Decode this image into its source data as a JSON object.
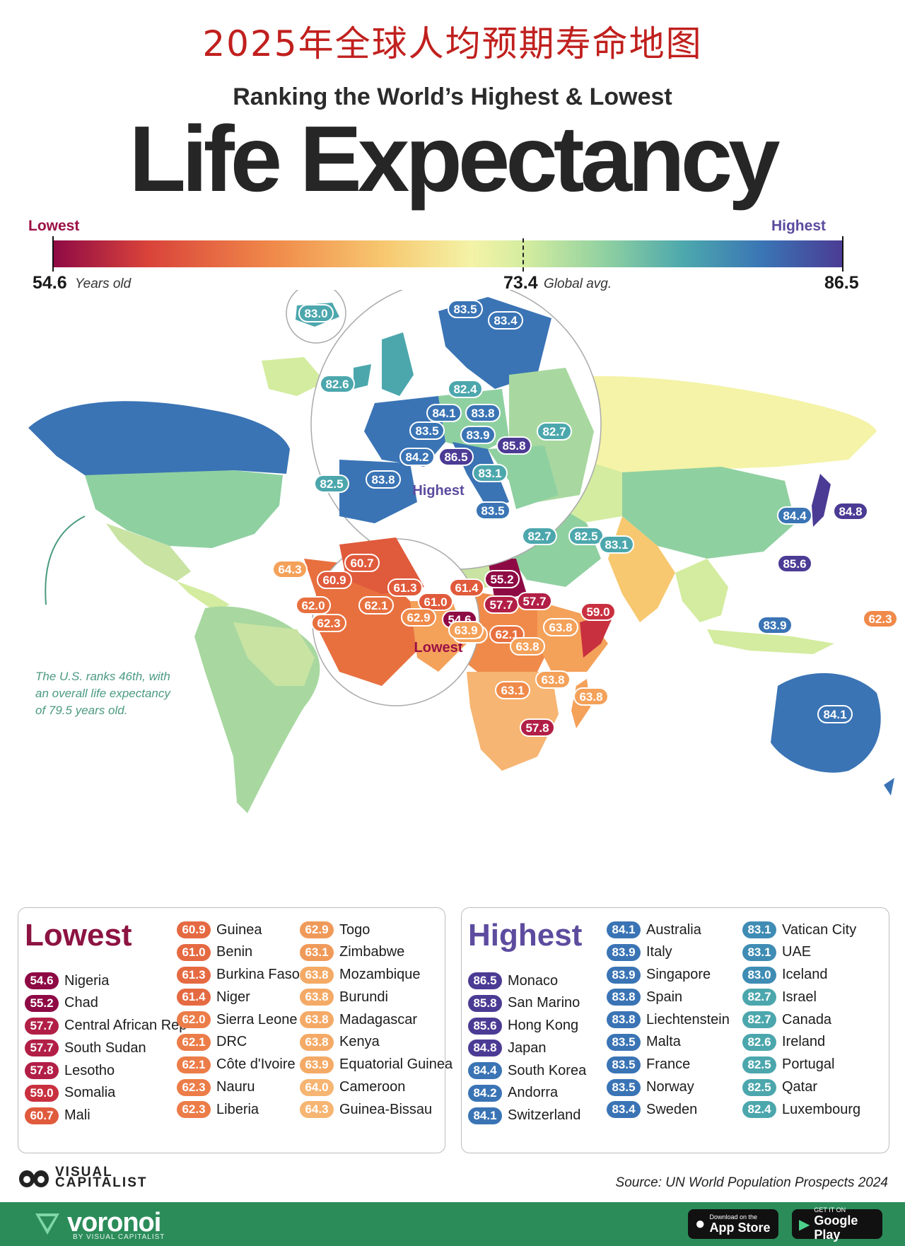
{
  "header": {
    "cn_title": "2025年全球人均预期寿命地图",
    "subtitle": "Ranking the World’s Highest & Lowest",
    "title": "Life Expectancy"
  },
  "scale": {
    "lowest_label": "Lowest",
    "highest_label": "Highest",
    "min_value": "54.6",
    "min_unit": "Years old",
    "avg_value": "73.4",
    "avg_unit": "Global avg.",
    "max_value": "86.5",
    "colors": [
      "#8e0a45",
      "#d9433a",
      "#f08a4a",
      "#f7c870",
      "#f4f3a7",
      "#8fd0a1",
      "#4ca7ad",
      "#3a74b5",
      "#4b3b94"
    ]
  },
  "map": {
    "highest_marker": "Highest",
    "lowest_marker": "Lowest",
    "note": "The U.S. ranks 46th, with an overall life expectancy of 79.5 years old.",
    "labels": [
      {
        "v": "83.0",
        "c": "#4ca7ad"
      },
      {
        "v": "83.5",
        "c": "#3a74b5"
      },
      {
        "v": "83.4",
        "c": "#3a74b5"
      },
      {
        "v": "82.6",
        "c": "#4ca7ad"
      },
      {
        "v": "82.4",
        "c": "#4ca7ad"
      },
      {
        "v": "82.7",
        "c": "#4ca7ad"
      },
      {
        "v": "84.1",
        "c": "#3a74b5"
      },
      {
        "v": "83.8",
        "c": "#3a74b5"
      },
      {
        "v": "83.5",
        "c": "#3a74b5"
      },
      {
        "v": "83.9",
        "c": "#3a74b5"
      },
      {
        "v": "85.8",
        "c": "#4b3b94"
      },
      {
        "v": "84.2",
        "c": "#3a74b5"
      },
      {
        "v": "86.5",
        "c": "#4b3b94"
      },
      {
        "v": "83.1",
        "c": "#4ca7ad"
      },
      {
        "v": "82.5",
        "c": "#4ca7ad"
      },
      {
        "v": "83.8",
        "c": "#3a74b5"
      },
      {
        "v": "83.5",
        "c": "#3a74b5"
      },
      {
        "v": "82.7",
        "c": "#4ca7ad"
      },
      {
        "v": "82.5",
        "c": "#4ca7ad"
      },
      {
        "v": "83.1",
        "c": "#4ca7ad"
      },
      {
        "v": "84.4",
        "c": "#3a74b5"
      },
      {
        "v": "84.8",
        "c": "#4b3b94"
      },
      {
        "v": "85.6",
        "c": "#4b3b94"
      },
      {
        "v": "83.9",
        "c": "#3a74b5"
      },
      {
        "v": "84.1",
        "c": "#3a74b5"
      },
      {
        "v": "62.3",
        "c": "#f08a4a"
      },
      {
        "v": "64.3",
        "c": "#f4a15a"
      },
      {
        "v": "60.7",
        "c": "#e05a3c"
      },
      {
        "v": "60.9",
        "c": "#e05a3c"
      },
      {
        "v": "61.3",
        "c": "#e05a3c"
      },
      {
        "v": "61.4",
        "c": "#e05a3c"
      },
      {
        "v": "61.0",
        "c": "#e05a3c"
      },
      {
        "v": "55.2",
        "c": "#8e0a45"
      },
      {
        "v": "62.0",
        "c": "#e8703f"
      },
      {
        "v": "62.1",
        "c": "#e8703f"
      },
      {
        "v": "62.9",
        "c": "#f08a4a"
      },
      {
        "v": "54.6",
        "c": "#8e0a45"
      },
      {
        "v": "57.7",
        "c": "#b21f46"
      },
      {
        "v": "57.7",
        "c": "#b21f46"
      },
      {
        "v": "59.0",
        "c": "#c9303f"
      },
      {
        "v": "62.3",
        "c": "#e8703f"
      },
      {
        "v": "64.0",
        "c": "#f4a15a"
      },
      {
        "v": "63.9",
        "c": "#f4a15a"
      },
      {
        "v": "62.1",
        "c": "#e8703f"
      },
      {
        "v": "63.8",
        "c": "#f4a15a"
      },
      {
        "v": "63.8",
        "c": "#f4a15a"
      },
      {
        "v": "63.8",
        "c": "#f4a15a"
      },
      {
        "v": "63.8",
        "c": "#f4a15a"
      },
      {
        "v": "63.1",
        "c": "#f08a4a"
      },
      {
        "v": "57.8",
        "c": "#b21f46"
      }
    ]
  },
  "lowest": {
    "title": "Lowest",
    "col1": [
      {
        "v": "54.6",
        "n": "Nigeria",
        "c": "#8e0a45"
      },
      {
        "v": "55.2",
        "n": "Chad",
        "c": "#8e0a45"
      },
      {
        "v": "57.7",
        "n": "Central African Rep",
        "c": "#b21f46"
      },
      {
        "v": "57.7",
        "n": "South Sudan",
        "c": "#b21f46"
      },
      {
        "v": "57.8",
        "n": "Lesotho",
        "c": "#b21f46"
      },
      {
        "v": "59.0",
        "n": "Somalia",
        "c": "#c9303f"
      },
      {
        "v": "60.7",
        "n": "Mali",
        "c": "#e05a3c"
      }
    ],
    "col2": [
      {
        "v": "60.9",
        "n": "Guinea",
        "c": "#e56a42"
      },
      {
        "v": "61.0",
        "n": "Benin",
        "c": "#e56a42"
      },
      {
        "v": "61.3",
        "n": "Burkina Faso",
        "c": "#e56a42"
      },
      {
        "v": "61.4",
        "n": "Niger",
        "c": "#e56a42"
      },
      {
        "v": "62.0",
        "n": "Sierra Leone",
        "c": "#ec7c48"
      },
      {
        "v": "62.1",
        "n": "DRC",
        "c": "#ec7c48"
      },
      {
        "v": "62.1",
        "n": "Côte d'Ivoire",
        "c": "#ec7c48"
      },
      {
        "v": "62.3",
        "n": "Nauru",
        "c": "#ec7c48"
      },
      {
        "v": "62.3",
        "n": "Liberia",
        "c": "#ec7c48"
      }
    ],
    "col3": [
      {
        "v": "62.9",
        "n": "Togo",
        "c": "#f09a5a"
      },
      {
        "v": "63.1",
        "n": "Zimbabwe",
        "c": "#f09a5a"
      },
      {
        "v": "63.8",
        "n": "Mozambique",
        "c": "#f4aa66"
      },
      {
        "v": "63.8",
        "n": "Burundi",
        "c": "#f4aa66"
      },
      {
        "v": "63.8",
        "n": "Madagascar",
        "c": "#f4aa66"
      },
      {
        "v": "63.8",
        "n": "Kenya",
        "c": "#f4aa66"
      },
      {
        "v": "63.9",
        "n": "Equatorial Guinea",
        "c": "#f4aa66"
      },
      {
        "v": "64.0",
        "n": "Cameroon",
        "c": "#f6b572"
      },
      {
        "v": "64.3",
        "n": "Guinea-Bissau",
        "c": "#f6b572"
      }
    ]
  },
  "highest": {
    "title": "Highest",
    "col1": [
      {
        "v": "86.5",
        "n": "Monaco",
        "c": "#4b3b94"
      },
      {
        "v": "85.8",
        "n": "San Marino",
        "c": "#4b3b94"
      },
      {
        "v": "85.6",
        "n": "Hong Kong",
        "c": "#4b3b94"
      },
      {
        "v": "84.8",
        "n": "Japan",
        "c": "#4b3b94"
      },
      {
        "v": "84.4",
        "n": "South Korea",
        "c": "#3a74b5"
      },
      {
        "v": "84.2",
        "n": "Andorra",
        "c": "#3a74b5"
      },
      {
        "v": "84.1",
        "n": "Switzerland",
        "c": "#3a74b5"
      }
    ],
    "col2": [
      {
        "v": "84.1",
        "n": "Australia",
        "c": "#3a74b5"
      },
      {
        "v": "83.9",
        "n": "Italy",
        "c": "#3a74b5"
      },
      {
        "v": "83.9",
        "n": "Singapore",
        "c": "#3a74b5"
      },
      {
        "v": "83.8",
        "n": "Spain",
        "c": "#3a74b5"
      },
      {
        "v": "83.8",
        "n": "Liechtenstein",
        "c": "#3a74b5"
      },
      {
        "v": "83.5",
        "n": "Malta",
        "c": "#3a74b5"
      },
      {
        "v": "83.5",
        "n": "France",
        "c": "#3a74b5"
      },
      {
        "v": "83.5",
        "n": "Norway",
        "c": "#3a74b5"
      },
      {
        "v": "83.4",
        "n": "Sweden",
        "c": "#3a74b5"
      }
    ],
    "col3": [
      {
        "v": "83.1",
        "n": "Vatican City",
        "c": "#3f8cb4"
      },
      {
        "v": "83.1",
        "n": "UAE",
        "c": "#3f8cb4"
      },
      {
        "v": "83.0",
        "n": "Iceland",
        "c": "#3f8cb4"
      },
      {
        "v": "82.7",
        "n": "Israel",
        "c": "#4ca7ad"
      },
      {
        "v": "82.7",
        "n": "Canada",
        "c": "#4ca7ad"
      },
      {
        "v": "82.6",
        "n": "Ireland",
        "c": "#4ca7ad"
      },
      {
        "v": "82.5",
        "n": "Portugal",
        "c": "#4ca7ad"
      },
      {
        "v": "82.5",
        "n": "Qatar",
        "c": "#4ca7ad"
      },
      {
        "v": "82.4",
        "n": "Luxembourg",
        "c": "#4ca7ad"
      }
    ]
  },
  "footer": {
    "brand_line1": "VISUAL",
    "brand_line2": "CAPITALIST",
    "source": "Source: UN World Population Prospects 2024",
    "voronoi": "voronoi",
    "voronoi_sub": "BY VISUAL CAPITALIST",
    "appstore_sub": "Download on the",
    "appstore": "App Store",
    "googleplay_sub": "GET IT ON",
    "googleplay": "Google Play"
  }
}
